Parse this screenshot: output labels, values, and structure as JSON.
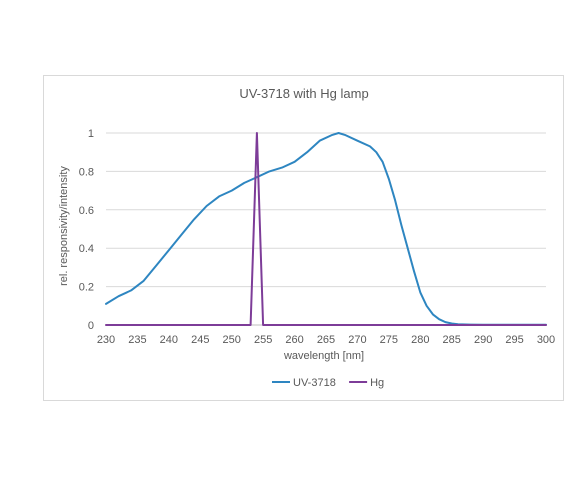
{
  "chart_data": {
    "type": "line",
    "title": "UV-3718 with Hg lamp",
    "xlabel": "wavelength [nm]",
    "ylabel": "rel. responsivity/intensity",
    "xlim": [
      230,
      300
    ],
    "ylim": [
      0,
      1
    ],
    "x_ticks": [
      230,
      235,
      240,
      245,
      250,
      255,
      260,
      265,
      270,
      275,
      280,
      285,
      290,
      295,
      300
    ],
    "y_ticks": [
      0,
      0.2,
      0.4,
      0.6,
      0.8,
      1
    ],
    "y_tick_labels": [
      "0",
      "0.2",
      "0.4",
      "0.6",
      "0.8",
      "1"
    ],
    "grid": "horizontal",
    "legend_position": "bottom",
    "series": [
      {
        "name": "UV-3718",
        "color": "#2e86c1",
        "x": [
          230,
          232,
          234,
          236,
          238,
          240,
          242,
          244,
          246,
          248,
          250,
          252,
          254,
          256,
          258,
          260,
          262,
          264,
          266,
          267,
          268,
          270,
          272,
          273,
          274,
          275,
          276,
          277,
          278,
          279,
          280,
          281,
          282,
          283,
          284,
          285,
          286,
          288,
          290,
          295,
          300
        ],
        "y": [
          0.11,
          0.15,
          0.18,
          0.23,
          0.31,
          0.39,
          0.47,
          0.55,
          0.62,
          0.67,
          0.7,
          0.74,
          0.77,
          0.8,
          0.82,
          0.85,
          0.9,
          0.96,
          0.99,
          1.0,
          0.99,
          0.96,
          0.93,
          0.9,
          0.85,
          0.76,
          0.65,
          0.52,
          0.4,
          0.28,
          0.17,
          0.1,
          0.055,
          0.03,
          0.015,
          0.008,
          0.004,
          0.002,
          0.001,
          0.001,
          0.001
        ]
      },
      {
        "name": "Hg",
        "color": "#7d3c98",
        "x": [
          230,
          253,
          254,
          255,
          300
        ],
        "y": [
          0,
          0,
          1,
          0,
          0
        ]
      }
    ]
  }
}
